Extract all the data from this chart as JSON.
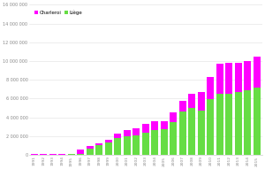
{
  "years": [
    "1991",
    "1992",
    "1993",
    "1994",
    "1995",
    "1996",
    "1997",
    "1998",
    "1999",
    "2000",
    "2001",
    "2002",
    "2003",
    "2004",
    "2005",
    "2006",
    "2007",
    "2008",
    "2009",
    "2010",
    "2011",
    "2012",
    "2013",
    "2014",
    "2015"
  ],
  "charleroi": [
    30000,
    50000,
    30000,
    40000,
    80000,
    450000,
    200000,
    250000,
    350000,
    450000,
    600000,
    700000,
    900000,
    1000000,
    900000,
    1000000,
    1200000,
    1500000,
    2000000,
    2400000,
    3200000,
    3300000,
    3100000,
    3100000,
    3300000
  ],
  "liege": [
    20000,
    20000,
    30000,
    40000,
    50000,
    80000,
    700000,
    1000000,
    1300000,
    1800000,
    2000000,
    2100000,
    2400000,
    2600000,
    2700000,
    3500000,
    4600000,
    5000000,
    4700000,
    5900000,
    6500000,
    6500000,
    6700000,
    6900000,
    7200000
  ],
  "charleroi_color": "#ff00ff",
  "liege_color": "#66dd44",
  "ylim": [
    0,
    16000000
  ],
  "yticks": [
    0,
    2000000,
    4000000,
    6000000,
    8000000,
    10000000,
    12000000,
    14000000,
    16000000
  ],
  "ytick_labels": [
    "0",
    "2 000 000",
    "4 000 000",
    "6 000 000",
    "8 000 000",
    "10 000 000",
    "12 000 000",
    "14 000 000",
    "16 000 000"
  ],
  "legend_charleroi": "Charleroi",
  "legend_liege": "Liège",
  "bg_color": "#ffffff",
  "grid_color": "#e0e0e0",
  "tick_color": "#888888",
  "spine_color": "#cccccc"
}
